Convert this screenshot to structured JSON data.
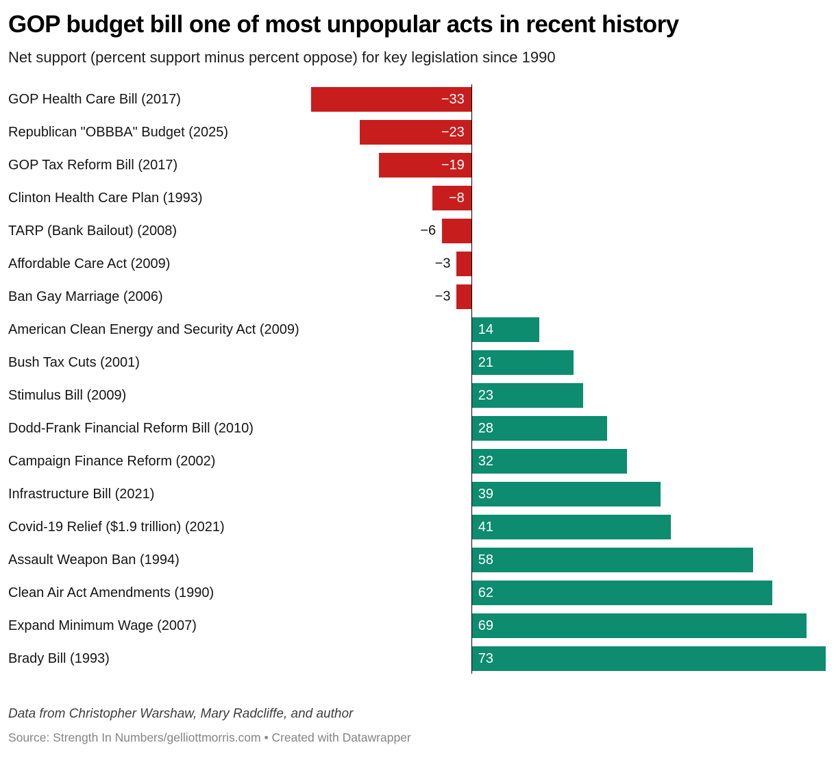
{
  "header": {
    "title": "GOP budget bill one of most unpopular acts in recent history",
    "subtitle": "Net support (percent support minus percent oppose) for key legislation since 1990"
  },
  "chart_data": {
    "type": "bar",
    "orientation": "horizontal",
    "title": "GOP budget bill one of most unpopular acts in recent history",
    "subtitle": "Net support (percent support minus percent oppose) for key legislation since 1990",
    "categories": [
      "GOP Health Care Bill (2017)",
      "Republican \"OBBBA\" Budget (2025)",
      "GOP Tax Reform Bill (2017)",
      "Clinton Health Care Plan (1993)",
      "TARP (Bank Bailout) (2008)",
      "Affordable Care Act (2009)",
      "Ban Gay Marriage (2006)",
      "American Clean Energy and Security Act (2009)",
      "Bush Tax Cuts (2001)",
      "Stimulus Bill (2009)",
      "Dodd-Frank Financial Reform Bill (2010)",
      "Campaign Finance Reform (2002)",
      "Infrastructure Bill (2021)",
      "Covid-19 Relief ($1.9 trillion) (2021)",
      "Assault Weapon Ban (1994)",
      "Clean Air Act Amendments (1990)",
      "Expand Minimum Wage (2007)",
      "Brady Bill (1993)"
    ],
    "values": [
      -33,
      -23,
      -19,
      -8,
      -6,
      -3,
      -3,
      14,
      21,
      23,
      28,
      32,
      39,
      41,
      58,
      62,
      69,
      73
    ],
    "baseline": 0,
    "grid": false,
    "legend": "none",
    "negative_color": "#c71e1d",
    "positive_color": "#0d8c6f",
    "value_label_color_inside": "#ffffff",
    "value_label_color_outside": "#141414",
    "value_label_rule": "inside bar when |value| >= 8, outside (left of bar) otherwise"
  },
  "footer": {
    "note": "Data from Christopher Warshaw, Mary Radcliffe, and author",
    "source": "Source: Strength In Numbers/gelliottmorris.com • Created with Datawrapper"
  }
}
